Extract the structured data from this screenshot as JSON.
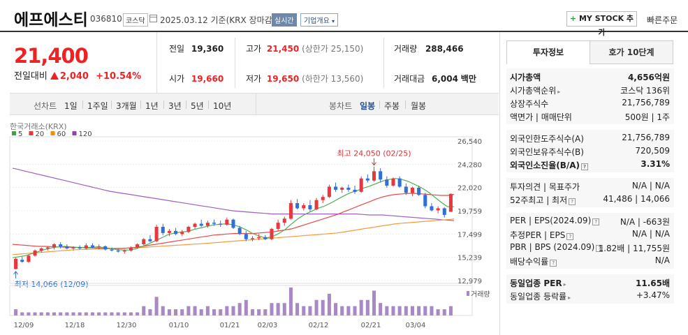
{
  "header": {
    "name": "에프에스티",
    "code": "036810",
    "market": "코스닥",
    "date": "2025.03.12 기준(KRX 장마감)",
    "realtime": "실시간",
    "company_info": "기업개요",
    "mystock": "MY STOCK 추가",
    "fast_order": "빠른주문"
  },
  "price": {
    "current": "21,400",
    "prev_label": "전일대비",
    "change": "2,040",
    "change_pct": "+10.54%"
  },
  "stats": {
    "prev_label": "전일",
    "prev": "19,360",
    "open_label": "시가",
    "open": "19,660",
    "high_label": "고가",
    "high": "21,450",
    "upper_limit": "(상한가 25,150)",
    "low_label": "저가",
    "low": "19,650",
    "lower_limit": "(하한가 13,560)",
    "volume_label": "거래량",
    "volume": "288,466",
    "amount_label": "거래대금",
    "amount": "6,004",
    "amount_unit": "백만"
  },
  "toolbar": {
    "line_chart": "선차트",
    "periods": [
      "1일",
      "1주일",
      "3개월",
      "1년",
      "3년",
      "5년",
      "10년"
    ],
    "candle_chart": "봉차트",
    "candle_periods": [
      "일봉",
      "주봉",
      "월봉"
    ],
    "candle_selected": "일봉"
  },
  "chart_data": {
    "type": "candlestick",
    "source_label": "한국거래소(KRX)",
    "legend": [
      {
        "name": "5",
        "color": "#43a047"
      },
      {
        "name": "20",
        "color": "#e53935"
      },
      {
        "name": "60",
        "color": "#fb8c00"
      },
      {
        "name": "120",
        "color": "#8e44ad"
      }
    ],
    "ylim": [
      12979,
      26540
    ],
    "y_ticks": [
      "26,540",
      "24,280",
      "22,020",
      "19,759",
      "17,499",
      "15,239",
      "12,979"
    ],
    "x_ticks": [
      "12/09",
      "12/18",
      "12/30",
      "01/10",
      "01/21",
      "02/03",
      "02/12",
      "02/21",
      "03/04"
    ],
    "high_annotation": "최고 24,050 (02/25)",
    "low_annotation": "최저 14,066 (12/09)",
    "volume_label": "거래량",
    "candles": [
      {
        "o": 14100,
        "h": 15200,
        "l": 14066,
        "c": 15100
      },
      {
        "o": 15000,
        "h": 15300,
        "l": 14700,
        "c": 14800
      },
      {
        "o": 14800,
        "h": 15500,
        "l": 14700,
        "c": 15400
      },
      {
        "o": 15400,
        "h": 16000,
        "l": 15300,
        "c": 15900
      },
      {
        "o": 15900,
        "h": 16200,
        "l": 15700,
        "c": 16100
      },
      {
        "o": 16100,
        "h": 16300,
        "l": 15900,
        "c": 16200
      },
      {
        "o": 16200,
        "h": 16600,
        "l": 16000,
        "c": 16500
      },
      {
        "o": 16500,
        "h": 16700,
        "l": 16100,
        "c": 16300
      },
      {
        "o": 16300,
        "h": 16500,
        "l": 16000,
        "c": 16100
      },
      {
        "o": 16100,
        "h": 16300,
        "l": 15900,
        "c": 16200
      },
      {
        "o": 16200,
        "h": 16400,
        "l": 16000,
        "c": 16100
      },
      {
        "o": 16100,
        "h": 16600,
        "l": 16000,
        "c": 16400
      },
      {
        "o": 16400,
        "h": 16600,
        "l": 16100,
        "c": 16200
      },
      {
        "o": 16200,
        "h": 16500,
        "l": 16000,
        "c": 16300
      },
      {
        "o": 16300,
        "h": 16400,
        "l": 15900,
        "c": 16000
      },
      {
        "o": 16000,
        "h": 16200,
        "l": 15800,
        "c": 15900
      },
      {
        "o": 15900,
        "h": 16100,
        "l": 15700,
        "c": 15800
      },
      {
        "o": 15800,
        "h": 16000,
        "l": 15600,
        "c": 15900
      },
      {
        "o": 15900,
        "h": 16300,
        "l": 15800,
        "c": 16200
      },
      {
        "o": 16200,
        "h": 16600,
        "l": 16100,
        "c": 16500
      },
      {
        "o": 16500,
        "h": 17100,
        "l": 16400,
        "c": 17000
      },
      {
        "o": 17000,
        "h": 17400,
        "l": 16700,
        "c": 16800
      },
      {
        "o": 16800,
        "h": 18400,
        "l": 16700,
        "c": 18200
      },
      {
        "o": 18200,
        "h": 18500,
        "l": 17400,
        "c": 17600
      },
      {
        "o": 17600,
        "h": 18000,
        "l": 17300,
        "c": 17800
      },
      {
        "o": 17800,
        "h": 18100,
        "l": 17400,
        "c": 17500
      },
      {
        "o": 17500,
        "h": 17900,
        "l": 17300,
        "c": 17700
      },
      {
        "o": 17700,
        "h": 18300,
        "l": 17600,
        "c": 18200
      },
      {
        "o": 18200,
        "h": 18600,
        "l": 18000,
        "c": 18500
      },
      {
        "o": 18500,
        "h": 18900,
        "l": 18200,
        "c": 18300
      },
      {
        "o": 18300,
        "h": 18800,
        "l": 18100,
        "c": 18600
      },
      {
        "o": 18600,
        "h": 18900,
        "l": 18300,
        "c": 18500
      },
      {
        "o": 18500,
        "h": 18800,
        "l": 18200,
        "c": 18400
      },
      {
        "o": 18400,
        "h": 19100,
        "l": 18300,
        "c": 18900
      },
      {
        "o": 18900,
        "h": 19000,
        "l": 18000,
        "c": 18100
      },
      {
        "o": 18100,
        "h": 18300,
        "l": 17400,
        "c": 17500
      },
      {
        "o": 17500,
        "h": 17800,
        "l": 16800,
        "c": 17000
      },
      {
        "o": 17000,
        "h": 17300,
        "l": 16800,
        "c": 17100
      },
      {
        "o": 17100,
        "h": 17500,
        "l": 16900,
        "c": 17200
      },
      {
        "o": 17200,
        "h": 17400,
        "l": 16900,
        "c": 17000
      },
      {
        "o": 17000,
        "h": 18100,
        "l": 16900,
        "c": 18000
      },
      {
        "o": 18000,
        "h": 18900,
        "l": 17800,
        "c": 18600
      },
      {
        "o": 18600,
        "h": 19200,
        "l": 18300,
        "c": 19000
      },
      {
        "o": 19000,
        "h": 20800,
        "l": 18900,
        "c": 20500
      },
      {
        "o": 20500,
        "h": 20900,
        "l": 19900,
        "c": 20000
      },
      {
        "o": 20000,
        "h": 20500,
        "l": 19800,
        "c": 20300
      },
      {
        "o": 20300,
        "h": 20800,
        "l": 19700,
        "c": 19900
      },
      {
        "o": 19900,
        "h": 21000,
        "l": 19800,
        "c": 20800
      },
      {
        "o": 20800,
        "h": 21300,
        "l": 20500,
        "c": 21100
      },
      {
        "o": 21100,
        "h": 22300,
        "l": 21000,
        "c": 22100
      },
      {
        "o": 22100,
        "h": 22500,
        "l": 21600,
        "c": 21800
      },
      {
        "o": 21800,
        "h": 22100,
        "l": 21500,
        "c": 22000
      },
      {
        "o": 22000,
        "h": 22300,
        "l": 21600,
        "c": 21800
      },
      {
        "o": 21800,
        "h": 22200,
        "l": 21400,
        "c": 21600
      },
      {
        "o": 21600,
        "h": 23100,
        "l": 21500,
        "c": 22900
      },
      {
        "o": 22900,
        "h": 23300,
        "l": 22500,
        "c": 22700
      },
      {
        "o": 22700,
        "h": 24050,
        "l": 22600,
        "c": 23600
      },
      {
        "o": 23600,
        "h": 23900,
        "l": 22500,
        "c": 22800
      },
      {
        "o": 22800,
        "h": 23100,
        "l": 22000,
        "c": 22200
      },
      {
        "o": 22200,
        "h": 23000,
        "l": 22100,
        "c": 22900
      },
      {
        "o": 22900,
        "h": 23100,
        "l": 22000,
        "c": 22100
      },
      {
        "o": 22100,
        "h": 22400,
        "l": 21300,
        "c": 21500
      },
      {
        "o": 21500,
        "h": 22100,
        "l": 21200,
        "c": 22000
      },
      {
        "o": 22000,
        "h": 22200,
        "l": 21200,
        "c": 21300
      },
      {
        "o": 21300,
        "h": 21500,
        "l": 20000,
        "c": 20200
      },
      {
        "o": 20200,
        "h": 20500,
        "l": 19700,
        "c": 19800
      },
      {
        "o": 19800,
        "h": 20200,
        "l": 19500,
        "c": 20000
      },
      {
        "o": 20000,
        "h": 20100,
        "l": 19100,
        "c": 19360
      },
      {
        "o": 19660,
        "h": 21450,
        "l": 19650,
        "c": 21400
      }
    ],
    "ma5": [
      15200,
      15300,
      15400,
      15600,
      15800,
      16000,
      16150,
      16250,
      16300,
      16250,
      16200,
      16200,
      16200,
      16250,
      16200,
      16100,
      16000,
      15950,
      15950,
      16050,
      16300,
      16550,
      16850,
      17150,
      17450,
      17600,
      17700,
      17750,
      17950,
      18100,
      18250,
      18400,
      18450,
      18500,
      18400,
      18200,
      17900,
      17550,
      17300,
      17100,
      17250,
      17550,
      17950,
      18500,
      19000,
      19400,
      19700,
      20000,
      20200,
      20500,
      20850,
      21200,
      21500,
      21700,
      21950,
      22150,
      22400,
      22650,
      22800,
      22900,
      22800,
      22600,
      22300,
      22000,
      21600,
      21100,
      20600,
      20150,
      20150
    ],
    "ma20": [
      16500,
      16450,
      16400,
      16350,
      16300,
      16300,
      16280,
      16250,
      16230,
      16200,
      16200,
      16180,
      16150,
      16130,
      16100,
      16100,
      16100,
      16100,
      16150,
      16200,
      16300,
      16400,
      16500,
      16600,
      16700,
      16800,
      16900,
      17000,
      17100,
      17200,
      17300,
      17400,
      17450,
      17500,
      17550,
      17550,
      17550,
      17550,
      17600,
      17650,
      17700,
      17800,
      17900,
      18000,
      18200,
      18400,
      18600,
      18800,
      19000,
      19200,
      19400,
      19650,
      19900,
      20150,
      20400,
      20650,
      20900,
      21100,
      21250,
      21350,
      21400,
      21450,
      21450,
      21400,
      21350,
      21300,
      21250,
      21250,
      21350
    ],
    "ma60": [
      15500,
      15550,
      15600,
      15650,
      15700,
      15750,
      15800,
      15850,
      15900,
      15950,
      15980,
      16000,
      16020,
      16040,
      16060,
      16080,
      16100,
      16120,
      16140,
      16160,
      16200,
      16240,
      16280,
      16320,
      16360,
      16400,
      16440,
      16480,
      16520,
      16560,
      16600,
      16650,
      16700,
      16750,
      16800,
      16850,
      16900,
      16950,
      17000,
      17050,
      17100,
      17150,
      17200,
      17250,
      17300,
      17350,
      17400,
      17450,
      17500,
      17550,
      17600,
      17700,
      17800,
      17900,
      18000,
      18100,
      18200,
      18300,
      18400,
      18500,
      18550,
      18600,
      18650,
      18700,
      18750,
      18800,
      18850,
      18900,
      18950
    ],
    "ma120": [
      23900,
      23750,
      23600,
      23450,
      23300,
      23150,
      23000,
      22850,
      22700,
      22550,
      22400,
      22250,
      22100,
      21950,
      21800,
      21650,
      21550,
      21450,
      21350,
      21250,
      21150,
      21050,
      20950,
      20850,
      20750,
      20650,
      20550,
      20450,
      20350,
      20250,
      20150,
      20050,
      19950,
      19850,
      19750,
      19700,
      19650,
      19600,
      19550,
      19500,
      19450,
      19450,
      19450,
      19450,
      19450,
      19450,
      19450,
      19450,
      19450,
      19450,
      19450,
      19450,
      19450,
      19450,
      19400,
      19350,
      19350,
      19350,
      19300,
      19250,
      19200,
      19150,
      19100,
      19050,
      19000,
      18950,
      18900,
      18850,
      18800
    ],
    "volume": [
      2,
      1,
      1,
      1,
      1,
      1,
      1,
      1,
      1,
      1,
      1,
      1,
      1,
      1,
      1,
      1,
      1,
      1,
      1,
      1,
      3,
      2,
      6,
      3,
      2,
      2,
      2,
      3,
      3,
      2,
      3,
      2,
      2,
      3,
      3,
      4,
      5,
      2,
      2,
      2,
      4,
      4,
      4,
      9,
      4,
      3,
      3,
      5,
      5,
      7,
      4,
      3,
      3,
      3,
      5,
      5,
      8,
      4,
      3,
      3,
      3,
      3,
      3,
      3,
      3,
      3,
      2,
      2,
      3
    ]
  },
  "panel": {
    "tab_invest": "투자정보",
    "tab_orderbook": "호가 10단계",
    "mcap_label": "시가총액",
    "mcap": "4,656억원",
    "mcap_rank_label": "시가총액순위",
    "mcap_rank": "코스닥 136위",
    "shares_label": "상장주식수",
    "shares": "21,756,789",
    "par_label": "액면가 | 매매단위",
    "par": "500원 | 1주",
    "foreign_limit_label": "외국인한도주식수(A)",
    "foreign_limit": "21,756,789",
    "foreign_hold_label": "외국인보유주식수(B)",
    "foreign_hold": "720,509",
    "foreign_ratio_label": "외국인소진율(B/A)",
    "foreign_ratio": "3.31%",
    "opinion_label": "투자의견 | 목표주가",
    "opinion": "N/A | N/A",
    "w52_label": "52주최고 | 최저",
    "w52": "41,486 | 14,066",
    "per_label": "PER | EPS(2024.09)",
    "per": "N/A | -663원",
    "eper_label": "추정PER | EPS",
    "eper": "N/A | N/A",
    "pbr_label": "PBR | BPS (2024.09)",
    "pbr": "1.82배 | 11,755원",
    "div_label": "배당수익률",
    "div": "N/A",
    "sector_per_label": "동일업종 PER",
    "sector_per": "11.65배",
    "sector_chg_label": "동일업종 등락률",
    "sector_chg": "+3.47%"
  }
}
